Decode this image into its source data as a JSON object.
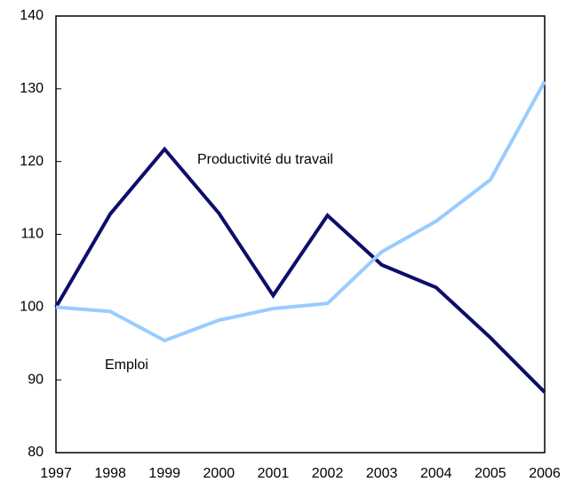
{
  "chart_data": {
    "type": "line",
    "categories": [
      "1997",
      "1998",
      "1999",
      "2000",
      "2001",
      "2002",
      "2003",
      "2004",
      "2005",
      "2006"
    ],
    "series": [
      {
        "name": "Productivité du travail",
        "color": "#0d0d6b",
        "values": [
          100,
          112.8,
          121.7,
          112.9,
          101.6,
          112.6,
          105.8,
          102.7,
          95.8,
          88.3
        ]
      },
      {
        "name": "Emploi",
        "color": "#99ccff",
        "values": [
          100,
          99.4,
          95.4,
          98.2,
          99.8,
          100.5,
          107.6,
          111.8,
          117.5,
          131
        ]
      }
    ],
    "ylim": [
      80,
      140
    ],
    "yticks": [
      80,
      90,
      100,
      110,
      120,
      130,
      140
    ],
    "grid": false
  }
}
